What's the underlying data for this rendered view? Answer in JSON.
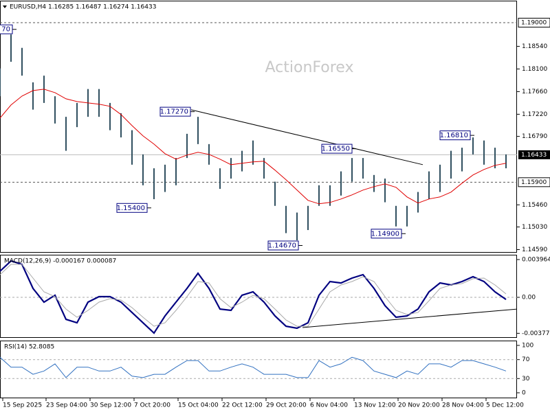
{
  "chart_data": [
    {
      "type": "range",
      "title": "EURUSD,H4 1.16285 1.16487 1.16274 1.16433",
      "watermark": "ActionForex",
      "xlim": [
        0,
        188
      ],
      "x": [
        0,
        4,
        8,
        12,
        16,
        20,
        24,
        28,
        32,
        36,
        40,
        44,
        48,
        52,
        56,
        60,
        64,
        68,
        72,
        76,
        80,
        84,
        88,
        92,
        96,
        100,
        104,
        108,
        112,
        116,
        120,
        124,
        128,
        132,
        136,
        140,
        144,
        148,
        152,
        156,
        160,
        164,
        168,
        172,
        176,
        180,
        184
      ],
      "highs": [
        1.1811,
        1.1877,
        1.1851,
        1.1784,
        1.1797,
        1.1757,
        1.1717,
        1.1744,
        1.1771,
        1.1771,
        1.1744,
        1.1724,
        1.1691,
        1.1644,
        1.1617,
        1.1624,
        1.1637,
        1.1684,
        1.1717,
        1.1664,
        1.1617,
        1.1637,
        1.1651,
        1.1671,
        1.1637,
        1.1591,
        1.1544,
        1.1531,
        1.1544,
        1.1584,
        1.1584,
        1.1611,
        1.1637,
        1.1637,
        1.1604,
        1.1597,
        1.1544,
        1.1544,
        1.1571,
        1.1611,
        1.1624,
        1.1651,
        1.1657,
        1.1677,
        1.1671,
        1.1657,
        1.1644
      ],
      "lows": [
        1.1757,
        1.1824,
        1.1797,
        1.1731,
        1.1744,
        1.1704,
        1.1651,
        1.1697,
        1.1717,
        1.1717,
        1.1691,
        1.1677,
        1.1624,
        1.1584,
        1.1557,
        1.1571,
        1.1584,
        1.1637,
        1.1664,
        1.1624,
        1.1577,
        1.1597,
        1.1611,
        1.1624,
        1.1597,
        1.1544,
        1.1491,
        1.1477,
        1.1497,
        1.1544,
        1.1544,
        1.1564,
        1.1591,
        1.1597,
        1.1571,
        1.1551,
        1.1504,
        1.1504,
        1.1531,
        1.1557,
        1.1571,
        1.1597,
        1.1611,
        1.1644,
        1.1624,
        1.1617,
        1.1617
      ],
      "bar_color": "#2f4f5f",
      "ma": {
        "color": "#e00000",
        "values": [
          1.17147,
          1.174,
          1.17574,
          1.1768,
          1.17707,
          1.1764,
          1.1752,
          1.17467,
          1.1744,
          1.17414,
          1.17374,
          1.17214,
          1.17,
          1.168,
          1.1664,
          1.16454,
          1.16347,
          1.16427,
          1.1648,
          1.1644,
          1.16347,
          1.1624,
          1.16267,
          1.16294,
          1.16307,
          1.16134,
          1.15947,
          1.15747,
          1.15547,
          1.1548,
          1.15507,
          1.15574,
          1.15654,
          1.15747,
          1.15814,
          1.15867,
          1.158,
          1.15614,
          1.15494,
          1.15574,
          1.15614,
          1.15707,
          1.1588,
          1.1604,
          1.16147,
          1.16227,
          1.16267
        ]
      },
      "trendline": {
        "x": [
          69.5,
          153.75
        ],
        "values": [
          1.17307,
          1.1624
        ]
      },
      "annotations": [
        {
          "x": 6,
          "value": 1.1887,
          "label": "70"
        },
        {
          "x": 70.75,
          "value": 1.1727,
          "label": "1.17270"
        },
        {
          "x": 55,
          "value": 1.154,
          "label": "1.15400"
        },
        {
          "x": 110,
          "value": 1.1467,
          "label": "1.14670"
        },
        {
          "x": 129.5,
          "value": 1.1655,
          "label": "1.16550"
        },
        {
          "x": 147.5,
          "value": 1.149,
          "label": "1.14900"
        },
        {
          "x": 172.5,
          "value": 1.1681,
          "label": "1.16810"
        }
      ],
      "levels": [
        {
          "value": 1.19,
          "label": "1.19000"
        },
        {
          "value": 1.159,
          "label": "1.15900"
        }
      ],
      "last": 1.16433,
      "ylim": [
        1.1453,
        1.1944
      ],
      "yticks": [
        {
          "value": 1.1854,
          "label": "1.18540"
        },
        {
          "value": 1.181,
          "label": "1.18100"
        },
        {
          "value": 1.1766,
          "label": "1.17660"
        },
        {
          "value": 1.1722,
          "label": "1.17220"
        },
        {
          "value": 1.1679,
          "label": "1.16790"
        },
        {
          "value": 1.1546,
          "label": "1.15460"
        },
        {
          "value": 1.1503,
          "label": "1.15030"
        },
        {
          "value": 1.1459,
          "label": "1.14590"
        }
      ]
    },
    {
      "type": "line",
      "title": "MACD(12,26,9) -0.000167 0.000087",
      "xlim": [
        0,
        188
      ],
      "x": [
        0,
        4,
        8,
        12,
        16,
        20,
        24,
        28,
        32,
        36,
        40,
        44,
        48,
        52,
        56,
        60,
        64,
        68,
        72,
        76,
        80,
        84,
        88,
        92,
        96,
        100,
        104,
        108,
        112,
        116,
        120,
        124,
        128,
        132,
        136,
        140,
        144,
        148,
        152,
        156,
        160,
        164,
        168,
        172,
        176,
        180,
        184
      ],
      "series": [
        {
          "color": "#000080",
          "width": 2.2,
          "values": [
            0.00274,
            0.00382,
            0.00346,
            0.00094,
            -0.0005,
            0.00022,
            -0.00231,
            -0.00267,
            -0.0005,
            7e-05,
            7e-05,
            -0.0005,
            -0.00159,
            -0.00267,
            -0.00375,
            -0.00195,
            -0.0005,
            0.00094,
            0.00252,
            0.00094,
            -0.00123,
            -0.00137,
            0.00022,
            0.00058,
            -0.0005,
            -0.00195,
            -0.00303,
            -0.00324,
            -0.00267,
            0.00022,
            0.00166,
            0.00151,
            0.00202,
            0.00238,
            0.00094,
            -0.00087,
            -0.00209,
            -0.00195,
            -0.00123,
            0.00058,
            0.00151,
            0.0013,
            0.00166,
            0.00216,
            0.00166,
            0.00058,
            -0.00022
          ]
        },
        {
          "color": "#a8a8a8",
          "width": 1,
          "values": [
            0.00238,
            0.00346,
            0.00346,
            0.00202,
            0.00058,
            7e-05,
            -0.00123,
            -0.00209,
            -0.00137,
            -0.0005,
            -0.00014,
            -0.00029,
            -0.00108,
            -0.00209,
            -0.00303,
            -0.00267,
            -0.00137,
            7e-05,
            0.00166,
            0.00151,
            -0.00014,
            -0.00108,
            -0.0005,
            0.00022,
            -0.00014,
            -0.00123,
            -0.00238,
            -0.00303,
            -0.00303,
            -0.00123,
            0.00058,
            0.0013,
            0.00166,
            0.00216,
            0.00166,
            7e-05,
            -0.00137,
            -0.0018,
            -0.00159,
            -0.00036,
            0.00094,
            0.0013,
            0.00144,
            0.00195,
            0.00202,
            0.0013,
            0.00036
          ]
        }
      ],
      "trendline": {
        "x": [
          110,
          188
        ],
        "values": [
          -0.00317,
          -0.00123
        ]
      },
      "levels": [
        0
      ],
      "ylim": [
        -0.00425,
        0.00454
      ],
      "yticks": [
        0.003964,
        {
          "value": 0,
          "label": "0.00"
        },
        -0.003774
      ]
    },
    {
      "type": "line",
      "title": "RSI(14) 52.8085",
      "xlim": [
        0,
        188
      ],
      "x": [
        0,
        4,
        8,
        12,
        16,
        20,
        24,
        28,
        32,
        36,
        40,
        44,
        48,
        52,
        56,
        60,
        64,
        68,
        72,
        76,
        80,
        84,
        88,
        92,
        96,
        100,
        104,
        108,
        112,
        116,
        120,
        124,
        128,
        132,
        136,
        140,
        144,
        148,
        152,
        156,
        160,
        164,
        168,
        172,
        176,
        180,
        184
      ],
      "series": [
        {
          "color": "#3070c0",
          "width": 1,
          "values": [
            75,
            54,
            54,
            39,
            46,
            61,
            32,
            54,
            54,
            46,
            46,
            54,
            35,
            32,
            39,
            39,
            54,
            68,
            68,
            46,
            46,
            54,
            61,
            54,
            39,
            39,
            39,
            32,
            32,
            68,
            54,
            61,
            75,
            68,
            46,
            39,
            32,
            46,
            39,
            61,
            61,
            54,
            68,
            68,
            61,
            54,
            46
          ]
        }
      ],
      "levels": [
        70,
        30
      ],
      "ylim": [
        -11.6,
        111.6
      ],
      "yticks": [
        100,
        70,
        30,
        0
      ],
      "xticks": [
        {
          "value": 1,
          "label": "15 Sep 2025"
        },
        {
          "value": 16.75,
          "label": "23 Sep 04:00"
        },
        {
          "value": 32.75,
          "label": "30 Sep 12:00"
        },
        {
          "value": 48.75,
          "label": "7 Oct 20:00"
        },
        {
          "value": 64.75,
          "label": "15 Oct 04:00"
        },
        {
          "value": 80.75,
          "label": "22 Oct 12:00"
        },
        {
          "value": 96.75,
          "label": "29 Oct 20:00"
        },
        {
          "value": 112.75,
          "label": "6 Nov 04:00"
        },
        {
          "value": 128.75,
          "label": "13 Nov 12:00"
        },
        {
          "value": 144.75,
          "label": "20 Nov 20:00"
        },
        {
          "value": 160.75,
          "label": "28 Nov 04:00"
        },
        {
          "value": 176.75,
          "label": "5 Dec 12:00"
        }
      ]
    }
  ]
}
